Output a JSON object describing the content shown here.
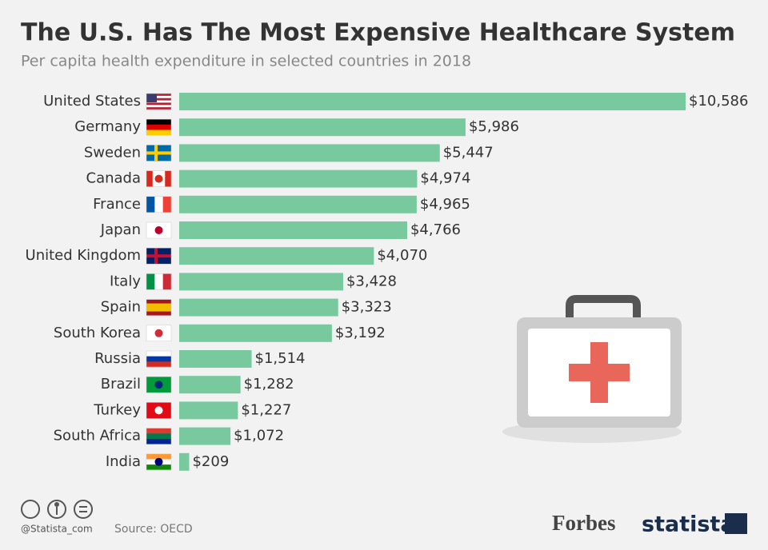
{
  "chart_data": {
    "type": "bar",
    "orientation": "horizontal",
    "title": "The U.S. Has The Most Expensive Healthcare System",
    "subtitle": "Per capita health expenditure in selected countries in 2018",
    "categories": [
      "United States",
      "Germany",
      "Sweden",
      "Canada",
      "France",
      "Japan",
      "United Kingdom",
      "Italy",
      "Spain",
      "South Korea",
      "Russia",
      "Brazil",
      "Turkey",
      "South Africa",
      "India"
    ],
    "values": [
      10586,
      5986,
      5447,
      4974,
      4965,
      4766,
      4070,
      3428,
      3323,
      3192,
      1514,
      1282,
      1227,
      1072,
      209
    ],
    "value_labels": [
      "$10,586",
      "$5,986",
      "$5,447",
      "$4,974",
      "$4,965",
      "$4,766",
      "$4,070",
      "$3,428",
      "$3,323",
      "$3,192",
      "$1,514",
      "$1,282",
      "$1,227",
      "$1,072",
      "$209"
    ],
    "color": "#79c99e",
    "source": "Source: OECD"
  },
  "footer": {
    "credit": "@Statista_com",
    "logos": [
      "Forbes",
      "statista"
    ]
  }
}
